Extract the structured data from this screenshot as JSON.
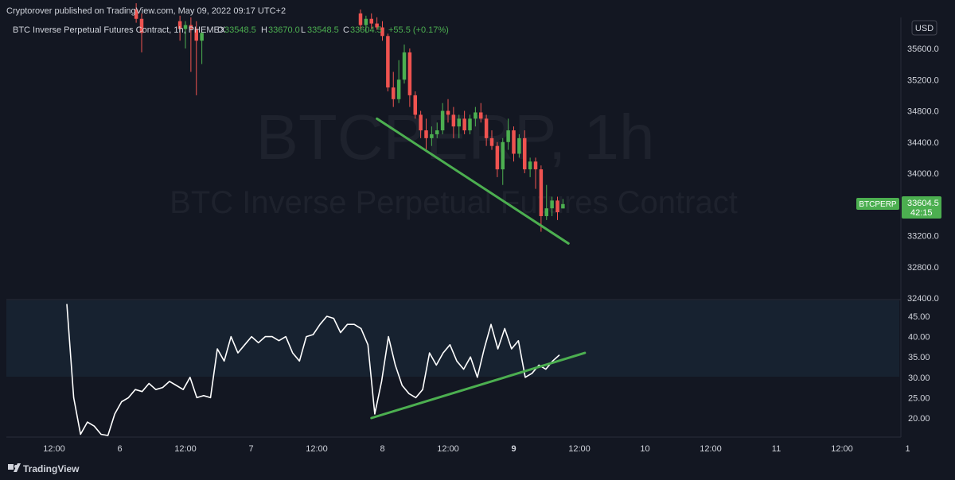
{
  "header": {
    "published": "Cryptorover published on TradingView.com, May 09, 2022 09:17 UTC+2"
  },
  "legend": {
    "symbol": "BTC Inverse Perpetual Futures Contract, 1h, PHEMEX",
    "o_label": "O",
    "o_value": "33548.5",
    "h_label": "H",
    "h_value": "33670.0",
    "l_label": "L",
    "l_value": "33548.5",
    "c_label": "C",
    "c_value": "33604.5",
    "change": "+55.5 (+0.17%)"
  },
  "watermark": {
    "line1": "BTCPERP, 1h",
    "line2": "BTC Inverse Perpetual Futures Contract"
  },
  "currency_button": "USD",
  "price_tag": {
    "label": "BTCPERP",
    "price": "33604.5",
    "countdown": "42:15"
  },
  "footer": {
    "brand": "TradingView"
  },
  "colors": {
    "background": "#131722",
    "up": "#26a69a",
    "down": "#ef5350",
    "trendline": "#4caf50",
    "oscillator": "#ffffff",
    "band": "#1a2530"
  },
  "chart_data": [
    {
      "type": "candlestick",
      "title": "BTC Inverse Perpetual Futures Contract, 1h, PHEMEX",
      "ylim": [
        32400,
        36000
      ],
      "y_ticks": [
        "35600.0",
        "35200.0",
        "34800.0",
        "34400.0",
        "34000.0",
        "33600.0",
        "33200.0",
        "32800.0",
        "32400.0"
      ],
      "x_ticks": [
        "12:00",
        "6",
        "12:00",
        "7",
        "12:00",
        "8",
        "12:00",
        "9",
        "12:00",
        "10",
        "12:00",
        "11",
        "12:00",
        "1"
      ],
      "last_price": 33604.5,
      "candles": [
        {
          "t": "May 6 03:00",
          "o": 36100,
          "h": 36180,
          "l": 35930,
          "c": 35980
        },
        {
          "t": "May 6 04:00",
          "o": 35980,
          "h": 36050,
          "l": 35550,
          "c": 35800
        },
        {
          "t": "May 6 11:00",
          "o": 35950,
          "h": 36020,
          "l": 35700,
          "c": 35850
        },
        {
          "t": "May 6 12:00",
          "o": 35850,
          "h": 35950,
          "l": 35600,
          "c": 35900
        },
        {
          "t": "May 6 13:00",
          "o": 35900,
          "h": 36000,
          "l": 35300,
          "c": 35850
        },
        {
          "t": "May 6 14:00",
          "o": 35850,
          "h": 35950,
          "l": 35000,
          "c": 35700
        },
        {
          "t": "May 6 15:00",
          "o": 35700,
          "h": 35850,
          "l": 35400,
          "c": 35800
        },
        {
          "t": "May 7 20:00",
          "o": 36050,
          "h": 36100,
          "l": 35850,
          "c": 35900
        },
        {
          "t": "May 7 21:00",
          "o": 35900,
          "h": 36020,
          "l": 35800,
          "c": 35980
        },
        {
          "t": "May 7 22:00",
          "o": 35980,
          "h": 36050,
          "l": 35850,
          "c": 35920
        },
        {
          "t": "May 7 23:00",
          "o": 35920,
          "h": 36000,
          "l": 35840,
          "c": 35870
        },
        {
          "t": "May 8 00:00",
          "o": 35870,
          "h": 35950,
          "l": 35700,
          "c": 35760
        },
        {
          "t": "May 8 01:00",
          "o": 35760,
          "h": 35790,
          "l": 35050,
          "c": 35100
        },
        {
          "t": "May 8 02:00",
          "o": 35100,
          "h": 35300,
          "l": 34850,
          "c": 34950
        },
        {
          "t": "May 8 03:00",
          "o": 34950,
          "h": 35450,
          "l": 34900,
          "c": 35200
        },
        {
          "t": "May 8 04:00",
          "o": 35200,
          "h": 35650,
          "l": 35150,
          "c": 35550
        },
        {
          "t": "May 8 05:00",
          "o": 35550,
          "h": 35600,
          "l": 34850,
          "c": 35000
        },
        {
          "t": "May 8 06:00",
          "o": 35000,
          "h": 35050,
          "l": 34700,
          "c": 34750
        },
        {
          "t": "May 8 07:00",
          "o": 34750,
          "h": 34800,
          "l": 34450,
          "c": 34550
        },
        {
          "t": "May 8 08:00",
          "o": 34550,
          "h": 34700,
          "l": 34300,
          "c": 34450
        },
        {
          "t": "May 8 09:00",
          "o": 34450,
          "h": 34600,
          "l": 34350,
          "c": 34500
        },
        {
          "t": "May 8 10:00",
          "o": 34500,
          "h": 34650,
          "l": 34450,
          "c": 34550
        },
        {
          "t": "May 8 11:00",
          "o": 34550,
          "h": 34900,
          "l": 34500,
          "c": 34800
        },
        {
          "t": "May 8 12:00",
          "o": 34800,
          "h": 34950,
          "l": 34650,
          "c": 34750
        },
        {
          "t": "May 8 13:00",
          "o": 34750,
          "h": 34850,
          "l": 34450,
          "c": 34600
        },
        {
          "t": "May 8 14:00",
          "o": 34600,
          "h": 34750,
          "l": 34450,
          "c": 34700
        },
        {
          "t": "May 8 15:00",
          "o": 34700,
          "h": 34800,
          "l": 34500,
          "c": 34550
        },
        {
          "t": "May 8 16:00",
          "o": 34550,
          "h": 34750,
          "l": 34500,
          "c": 34700
        },
        {
          "t": "May 8 17:00",
          "o": 34700,
          "h": 34850,
          "l": 34600,
          "c": 34780
        },
        {
          "t": "May 8 18:00",
          "o": 34780,
          "h": 34900,
          "l": 34650,
          "c": 34700
        },
        {
          "t": "May 8 19:00",
          "o": 34700,
          "h": 34750,
          "l": 34350,
          "c": 34450
        },
        {
          "t": "May 8 20:00",
          "o": 34450,
          "h": 34550,
          "l": 34300,
          "c": 34350
        },
        {
          "t": "May 8 21:00",
          "o": 34350,
          "h": 34400,
          "l": 33950,
          "c": 34050
        },
        {
          "t": "May 8 22:00",
          "o": 34050,
          "h": 34450,
          "l": 33850,
          "c": 34400
        },
        {
          "t": "May 8 23:00",
          "o": 34400,
          "h": 34700,
          "l": 34300,
          "c": 34550
        },
        {
          "t": "May 9 00:00",
          "o": 34550,
          "h": 34600,
          "l": 34150,
          "c": 34250
        },
        {
          "t": "May 9 01:00",
          "o": 34250,
          "h": 34500,
          "l": 34200,
          "c": 34450
        },
        {
          "t": "May 9 02:00",
          "o": 34450,
          "h": 34550,
          "l": 34000,
          "c": 34050
        },
        {
          "t": "May 9 03:00",
          "o": 34050,
          "h": 34200,
          "l": 33950,
          "c": 34150
        },
        {
          "t": "May 9 04:00",
          "o": 34150,
          "h": 34200,
          "l": 33800,
          "c": 34050
        },
        {
          "t": "May 9 05:00",
          "o": 34050,
          "h": 34100,
          "l": 33250,
          "c": 33450
        },
        {
          "t": "May 9 06:00",
          "o": 33450,
          "h": 33850,
          "l": 33400,
          "c": 33550
        },
        {
          "t": "May 9 07:00",
          "o": 33550,
          "h": 33700,
          "l": 33450,
          "c": 33650
        },
        {
          "t": "May 9 08:00",
          "o": 33650,
          "h": 33700,
          "l": 33400,
          "c": 33500
        },
        {
          "t": "May 9 09:00",
          "o": 33548.5,
          "h": 33670,
          "l": 33548.5,
          "c": 33604.5
        }
      ],
      "trendline": {
        "from": {
          "t": "May 7 23:00",
          "y": 34700
        },
        "to": {
          "t": "May 9 10:00",
          "y": 33100
        }
      }
    },
    {
      "type": "line",
      "name": "oscillator",
      "ylim": [
        15,
        49
      ],
      "y_ticks": [
        "45.00",
        "40.00",
        "35.00",
        "30.00",
        "25.00",
        "20.00"
      ],
      "band": [
        30,
        49
      ],
      "values": [
        48,
        25,
        16,
        19,
        18,
        16,
        15.5,
        21,
        24,
        25,
        27,
        26.5,
        28.5,
        27,
        27.5,
        29,
        28,
        27,
        30,
        25,
        25.5,
        25,
        37,
        34,
        40,
        36,
        38,
        40,
        38.5,
        40,
        40,
        39,
        40,
        36,
        34,
        40,
        40.5,
        43,
        45,
        44.5,
        41,
        43,
        43,
        42,
        38,
        21,
        29,
        40,
        33,
        28,
        26,
        25,
        27,
        36,
        33,
        36,
        38,
        34,
        32,
        35,
        30,
        37,
        43,
        37,
        42,
        37,
        39,
        30,
        31,
        33,
        32,
        34,
        35.5
      ],
      "trendline": {
        "from": {
          "t": "May 7 22:00",
          "y": 20
        },
        "to": {
          "t": "May 9 13:00",
          "y": 36
        }
      }
    }
  ]
}
